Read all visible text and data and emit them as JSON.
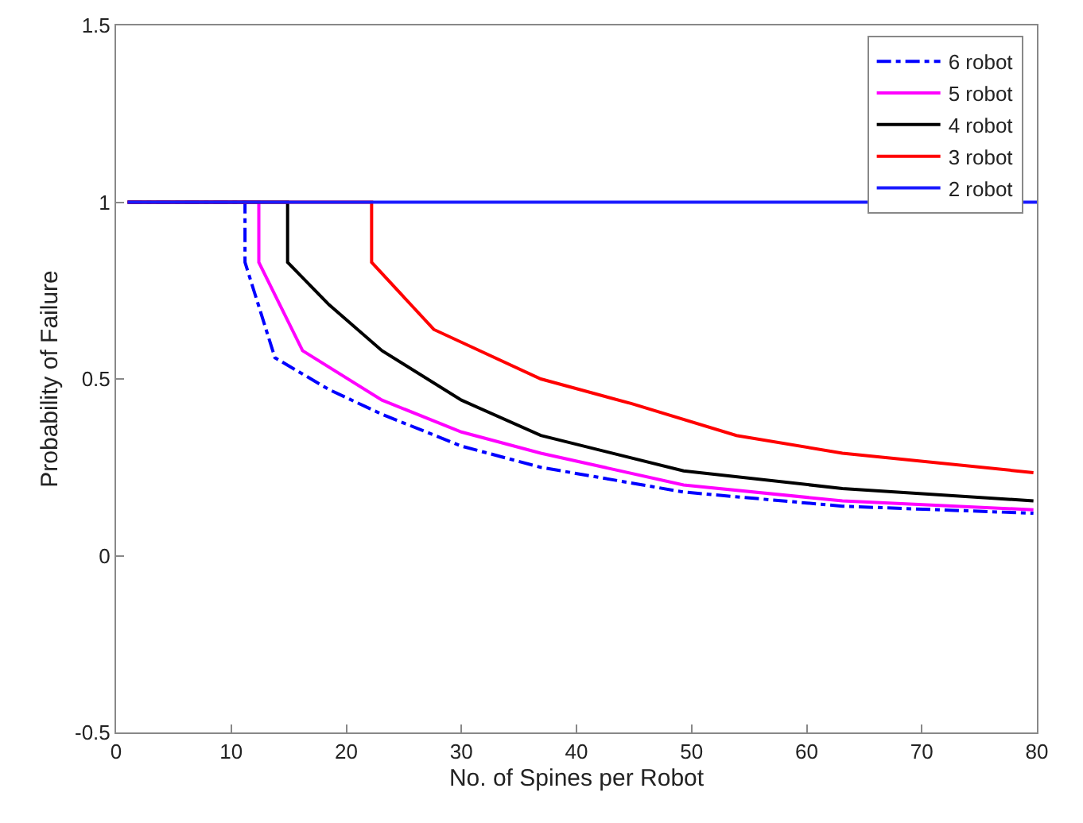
{
  "chart_data": {
    "type": "line",
    "xlabel": "No. of Spines per Robot",
    "ylabel": "Probability of Failure",
    "xlim": [
      0,
      80
    ],
    "ylim": [
      -0.5,
      1.5
    ],
    "xticks": [
      0,
      10,
      20,
      30,
      40,
      50,
      60,
      70,
      80
    ],
    "yticks": [
      -0.5,
      0,
      0.5,
      1,
      1.5
    ],
    "legend": "top right",
    "series": [
      {
        "name": "6 robot",
        "color": "#0000ff",
        "line_style": "dashdot",
        "x": [
          1,
          11.2,
          11.2,
          13.8,
          18.5,
          23.1,
          30,
          36.9,
          49.3,
          63.1,
          79.7
        ],
        "values": [
          1,
          1,
          0.83,
          0.56,
          0.47,
          0.4,
          0.31,
          0.25,
          0.18,
          0.14,
          0.12
        ]
      },
      {
        "name": "5 robot",
        "color": "#ff00ff",
        "line_style": "solid",
        "x": [
          1,
          12.4,
          12.4,
          16.2,
          23.1,
          30,
          36.9,
          49.3,
          63.1,
          79.7
        ],
        "values": [
          1,
          1,
          0.83,
          0.58,
          0.44,
          0.35,
          0.29,
          0.2,
          0.155,
          0.13
        ]
      },
      {
        "name": "4 robot",
        "color": "#000000",
        "line_style": "solid",
        "x": [
          1,
          14.9,
          14.9,
          18.5,
          23.1,
          30,
          36.9,
          49.3,
          63.1,
          79.7
        ],
        "values": [
          1,
          1,
          0.83,
          0.71,
          0.58,
          0.44,
          0.34,
          0.24,
          0.19,
          0.155
        ]
      },
      {
        "name": "3 robot",
        "color": "#ff0000",
        "line_style": "solid",
        "x": [
          1,
          22.2,
          22.2,
          27.6,
          36.9,
          44.8,
          53.9,
          63.1,
          79.7
        ],
        "values": [
          1,
          1,
          0.83,
          0.64,
          0.5,
          0.43,
          0.34,
          0.29,
          0.235
        ]
      },
      {
        "name": "2 robot",
        "color": "#1a1aff",
        "line_style": "solid",
        "x": [
          1,
          80
        ],
        "values": [
          1,
          1
        ]
      }
    ]
  }
}
